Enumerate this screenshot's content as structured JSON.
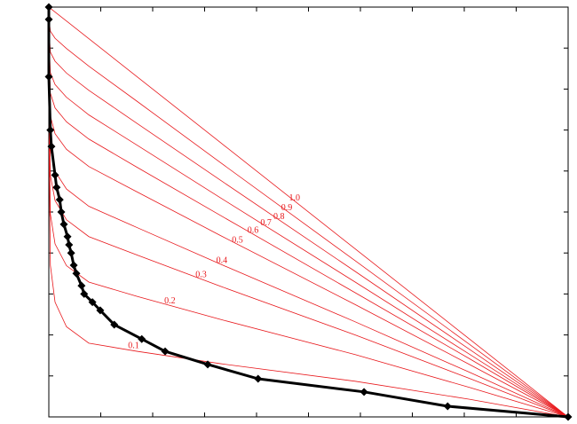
{
  "chart_data": {
    "type": "line",
    "xlim": [
      0,
      1
    ],
    "ylim": [
      0,
      1
    ],
    "xticks": [
      0,
      0.1,
      0.2,
      0.3,
      0.4,
      0.5,
      0.6,
      0.7,
      0.8,
      0.9,
      1
    ],
    "yticks": [
      0,
      0.1,
      0.2,
      0.3,
      0.4,
      0.5,
      0.6,
      0.7,
      0.8,
      0.9,
      1
    ],
    "grid": false,
    "series": [
      {
        "name": "0.1",
        "color": "#e8181c",
        "x": [
          0,
          0.001,
          0.003,
          0.012,
          0.034,
          0.077,
          0.17,
          0.33,
          0.59,
          0.81,
          1
        ],
        "values": [
          1,
          0.6,
          0.37,
          0.28,
          0.22,
          0.18,
          0.16,
          0.13,
          0.087,
          0.043,
          0
        ]
      },
      {
        "name": "0.2",
        "color": "#e8181c",
        "x": [
          0,
          0.001,
          0.003,
          0.012,
          0.034,
          0.077,
          0.17,
          0.33,
          0.59,
          0.81,
          1
        ],
        "values": [
          1,
          0.68,
          0.495,
          0.422,
          0.369,
          0.329,
          0.294,
          0.238,
          0.152,
          0.072,
          0
        ]
      },
      {
        "name": "0.3",
        "color": "#e8181c",
        "x": [
          0,
          0.001,
          0.003,
          0.012,
          0.034,
          0.077,
          0.17,
          0.33,
          0.59,
          0.81,
          1
        ],
        "values": [
          1,
          0.74,
          0.589,
          0.528,
          0.481,
          0.44,
          0.395,
          0.319,
          0.2,
          0.094,
          0
        ]
      },
      {
        "name": "0.4",
        "color": "#e8181c",
        "x": [
          0,
          0.001,
          0.003,
          0.012,
          0.034,
          0.077,
          0.17,
          0.33,
          0.59,
          0.81,
          1
        ],
        "values": [
          1,
          0.78,
          0.652,
          0.599,
          0.556,
          0.514,
          0.462,
          0.373,
          0.232,
          0.109,
          0
        ]
      },
      {
        "name": "0.5",
        "color": "#e8181c",
        "x": [
          0,
          0.001,
          0.003,
          0.012,
          0.034,
          0.077,
          0.17,
          0.33,
          0.59,
          0.81,
          1
        ],
        "values": [
          1,
          0.831,
          0.734,
          0.691,
          0.653,
          0.611,
          0.549,
          0.443,
          0.274,
          0.128,
          0
        ]
      },
      {
        "name": "0.6",
        "color": "#e8181c",
        "x": [
          0,
          0.001,
          0.003,
          0.012,
          0.034,
          0.077,
          0.17,
          0.33,
          0.59,
          0.81,
          1
        ],
        "values": [
          1,
          0.867,
          0.79,
          0.754,
          0.72,
          0.678,
          0.609,
          0.492,
          0.303,
          0.142,
          0
        ]
      },
      {
        "name": "0.7",
        "color": "#e8181c",
        "x": [
          0,
          0.001,
          0.003,
          0.012,
          0.034,
          0.077,
          0.17,
          0.33,
          0.59,
          0.81,
          1
        ],
        "values": [
          1,
          0.899,
          0.84,
          0.811,
          0.78,
          0.737,
          0.663,
          0.535,
          0.329,
          0.153,
          0
        ]
      },
      {
        "name": "0.8",
        "color": "#e8181c",
        "x": [
          0,
          0.001,
          0.003,
          0.012,
          0.034,
          0.077,
          0.17,
          0.33,
          0.59,
          0.81,
          1
        ],
        "values": [
          1,
          0.931,
          0.89,
          0.868,
          0.839,
          0.797,
          0.716,
          0.578,
          0.355,
          0.165,
          0
        ]
      },
      {
        "name": "0.9",
        "color": "#e8181c",
        "x": [
          0,
          0.001,
          0.003,
          0.012,
          0.034,
          0.077,
          0.17,
          0.33,
          0.59,
          0.81,
          1
        ],
        "values": [
          1,
          0.963,
          0.941,
          0.924,
          0.899,
          0.856,
          0.77,
          0.621,
          0.381,
          0.177,
          0
        ]
      },
      {
        "name": "1.0",
        "color": "#e8181c",
        "x": [
          0,
          0.001,
          0.003,
          0.012,
          0.034,
          0.077,
          0.17,
          0.33,
          0.59,
          0.81,
          1
        ],
        "values": [
          1,
          0.999,
          0.997,
          0.988,
          0.966,
          0.923,
          0.83,
          0.67,
          0.41,
          0.19,
          0
        ]
      },
      {
        "color": "#000000",
        "x": [
          0,
          0,
          0,
          0.003,
          0.005,
          0.012,
          0.015,
          0.021,
          0.024,
          0.029,
          0.036,
          0.039,
          0.043,
          0.048,
          0.053,
          0.063,
          0.068,
          0.084,
          0.099,
          0.126,
          0.179,
          0.224,
          0.306,
          0.403,
          0.607,
          0.768,
          1
        ],
        "values": [
          1,
          0.97,
          0.83,
          0.7,
          0.66,
          0.59,
          0.56,
          0.53,
          0.5,
          0.47,
          0.44,
          0.42,
          0.4,
          0.37,
          0.35,
          0.32,
          0.3,
          0.28,
          0.26,
          0.225,
          0.19,
          0.16,
          0.128,
          0.093,
          0.061,
          0.026,
          0
        ]
      }
    ]
  }
}
